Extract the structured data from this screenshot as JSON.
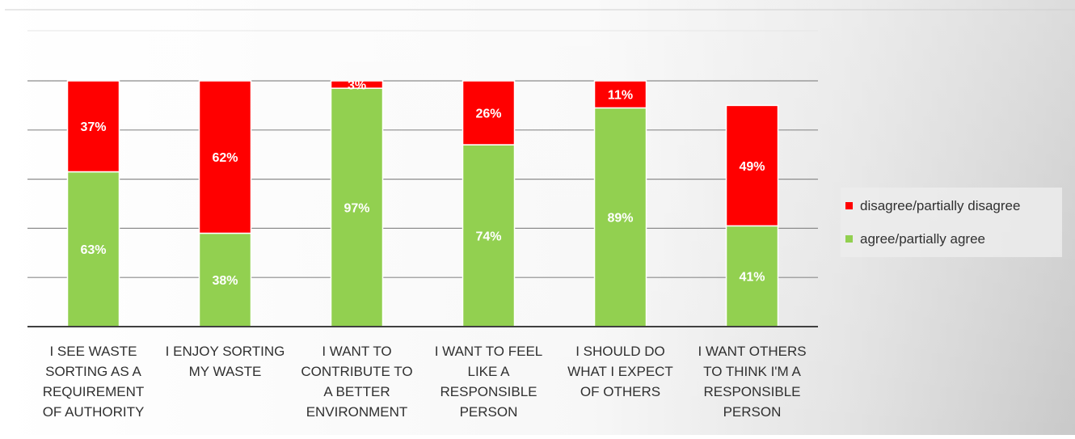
{
  "chart_data": {
    "type": "bar",
    "stacked": true,
    "title": "",
    "xlabel": "",
    "ylabel": "",
    "ylim": [
      0,
      100
    ],
    "grid": true,
    "legend_position": "right",
    "categories": [
      [
        "I SEE WASTE",
        "SORTING AS A",
        "REQUIREMENT",
        "OF AUTHORITY"
      ],
      [
        "I ENJOY SORTING",
        "MY WASTE"
      ],
      [
        "I WANT TO",
        "CONTRIBUTE TO",
        "A BETTER",
        "ENVIRONMENT"
      ],
      [
        "I WANT TO FEEL",
        "LIKE A",
        "RESPONSIBLE",
        "PERSON"
      ],
      [
        "I SHOULD DO",
        "WHAT I EXPECT",
        "OF OTHERS"
      ],
      [
        "I WANT OTHERS",
        "TO THINK I'M A",
        "RESPONSIBLE",
        "PERSON"
      ]
    ],
    "series": [
      {
        "name": "agree/partially agree",
        "color": "#92d050",
        "values": [
          63,
          38,
          97,
          74,
          89,
          41
        ],
        "labels": [
          "63%",
          "38%",
          "97%",
          "74%",
          "89%",
          "41%"
        ]
      },
      {
        "name": "disagree/partially disagree",
        "color": "#ff0000",
        "values": [
          37,
          62,
          3,
          26,
          11,
          49
        ],
        "labels": [
          "37%",
          "62%",
          "3%",
          "26%",
          "11%",
          "49%"
        ]
      }
    ],
    "legend_order": [
      "disagree/partially disagree",
      "agree/partially agree"
    ]
  }
}
